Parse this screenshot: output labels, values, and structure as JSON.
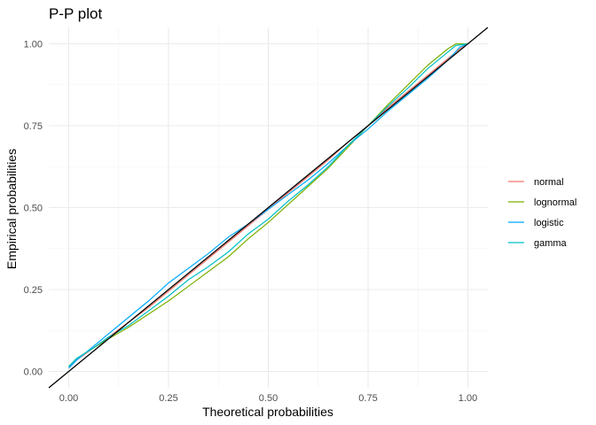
{
  "chart_data": {
    "type": "line",
    "title": "P-P plot",
    "xlabel": "Theoretical probabilities",
    "ylabel": "Empirical probabilities",
    "xlim": [
      -0.05,
      1.05
    ],
    "ylim": [
      -0.05,
      1.05
    ],
    "xticks": [
      "0.00",
      "0.25",
      "0.50",
      "0.75",
      "1.00"
    ],
    "yticks": [
      "0.00",
      "0.25",
      "0.50",
      "0.75",
      "1.00"
    ],
    "grid": true,
    "legend_position": "right",
    "reference_line": {
      "slope": 1,
      "intercept": 0,
      "color": "#000000"
    },
    "series": [
      {
        "name": "normal",
        "color": "#F8766D",
        "x": [
          0.0,
          0.02,
          0.06,
          0.1,
          0.15,
          0.2,
          0.25,
          0.3,
          0.35,
          0.4,
          0.45,
          0.5,
          0.55,
          0.6,
          0.65,
          0.7,
          0.75,
          0.8,
          0.85,
          0.9,
          0.95,
          0.98,
          1.0
        ],
        "y": [
          0.01,
          0.035,
          0.07,
          0.105,
          0.15,
          0.195,
          0.245,
          0.295,
          0.345,
          0.395,
          0.445,
          0.495,
          0.545,
          0.595,
          0.645,
          0.7,
          0.75,
          0.805,
          0.855,
          0.905,
          0.955,
          0.985,
          1.0
        ]
      },
      {
        "name": "lognormal",
        "color": "#7CAE00",
        "x": [
          0.0,
          0.02,
          0.06,
          0.1,
          0.15,
          0.2,
          0.25,
          0.3,
          0.35,
          0.4,
          0.45,
          0.5,
          0.55,
          0.6,
          0.65,
          0.7,
          0.75,
          0.8,
          0.85,
          0.9,
          0.95,
          0.97,
          1.0
        ],
        "y": [
          0.015,
          0.04,
          0.07,
          0.1,
          0.135,
          0.175,
          0.215,
          0.26,
          0.305,
          0.35,
          0.405,
          0.455,
          0.51,
          0.565,
          0.62,
          0.685,
          0.75,
          0.815,
          0.875,
          0.935,
          0.985,
          1.0,
          1.0
        ]
      },
      {
        "name": "logistic",
        "color": "#00A9FF",
        "x": [
          0.0,
          0.02,
          0.06,
          0.1,
          0.15,
          0.2,
          0.25,
          0.3,
          0.35,
          0.4,
          0.45,
          0.5,
          0.55,
          0.6,
          0.65,
          0.7,
          0.75,
          0.8,
          0.85,
          0.9,
          0.95,
          0.98,
          1.0
        ],
        "y": [
          0.01,
          0.035,
          0.075,
          0.115,
          0.165,
          0.215,
          0.27,
          0.315,
          0.36,
          0.41,
          0.45,
          0.495,
          0.54,
          0.585,
          0.635,
          0.69,
          0.74,
          0.795,
          0.845,
          0.895,
          0.95,
          0.99,
          1.0
        ]
      },
      {
        "name": "gamma",
        "color": "#00BFC4",
        "x": [
          0.0,
          0.02,
          0.06,
          0.1,
          0.15,
          0.2,
          0.25,
          0.3,
          0.35,
          0.4,
          0.45,
          0.5,
          0.55,
          0.6,
          0.65,
          0.7,
          0.75,
          0.8,
          0.85,
          0.9,
          0.95,
          0.97,
          1.0
        ],
        "y": [
          0.015,
          0.04,
          0.07,
          0.105,
          0.14,
          0.185,
          0.23,
          0.28,
          0.32,
          0.365,
          0.42,
          0.465,
          0.52,
          0.57,
          0.625,
          0.69,
          0.75,
          0.81,
          0.865,
          0.925,
          0.975,
          0.995,
          1.0
        ]
      }
    ]
  }
}
